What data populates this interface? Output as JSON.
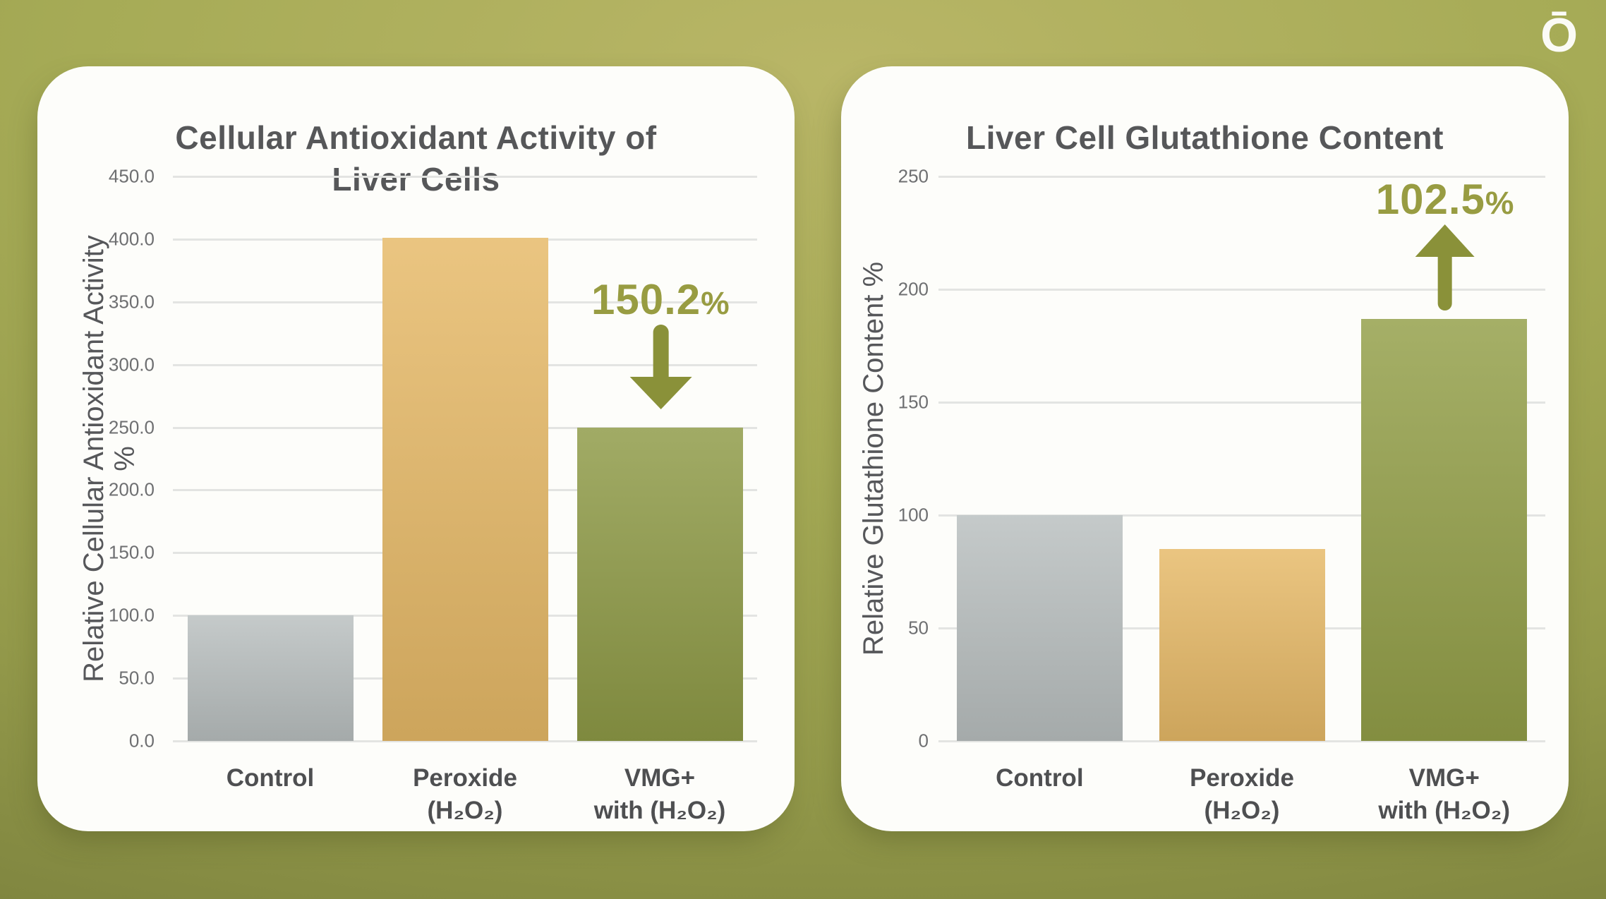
{
  "logo": {
    "text": "Ō"
  },
  "colors": {
    "background_olive": "#9aa04e",
    "card": "#fdfdfa",
    "title_gray": "#565759",
    "tick_gray": "#6e6f71",
    "grid": "#e3e4e2"
  },
  "chart_data": [
    {
      "type": "bar",
      "title": "Cellular Antioxidant Activity of\nLiver Cells",
      "ylabel": "Relative Cellular Antioxidant Activity %",
      "xlabel": "",
      "categories": [
        "Control",
        "Peroxide\n(H₂O₂)",
        "VMG+\nwith (H₂O₂)"
      ],
      "values": [
        100,
        401,
        250
      ],
      "ylim": [
        0,
        450
      ],
      "yticks": [
        "0.0",
        "50.0",
        "100.0",
        "150.0",
        "200.0",
        "250.0",
        "300.0",
        "350.0",
        "400.0",
        "450.0"
      ],
      "grid": true,
      "legend": "none",
      "bar_colors": [
        "#b9bfbf",
        "#e6b967",
        "#8e9a46"
      ],
      "annotation": {
        "text": "150.2%",
        "bar_index": 2,
        "direction": "down",
        "color": "#989c42",
        "arrow_color": "#8a9139"
      }
    },
    {
      "type": "bar",
      "title": "Liver Cell Glutathione Content",
      "ylabel": "Relative Glutathione Content %",
      "xlabel": "",
      "categories": [
        "Control",
        "Peroxide\n(H₂O₂)",
        "VMG+\nwith (H₂O₂)"
      ],
      "values": [
        100,
        85,
        187
      ],
      "ylim": [
        0,
        250
      ],
      "yticks": [
        "0",
        "50",
        "100",
        "150",
        "200",
        "250"
      ],
      "grid": true,
      "legend": "none",
      "bar_colors": [
        "#b9bfbf",
        "#e6b967",
        "#939f48"
      ],
      "annotation": {
        "text": "102.5%",
        "bar_index": 2,
        "direction": "up",
        "color": "#989c42",
        "arrow_color": "#8a9139"
      }
    }
  ]
}
